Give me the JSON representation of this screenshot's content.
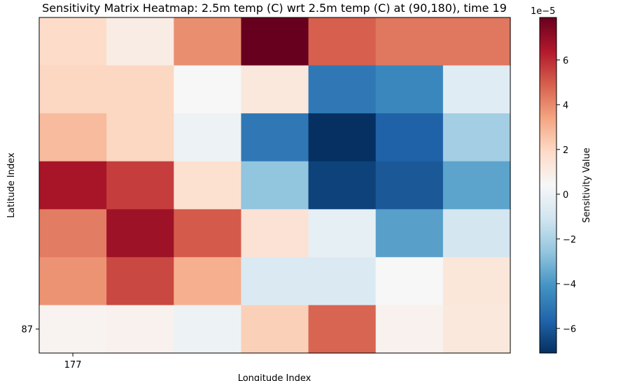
{
  "chart_data": {
    "type": "heatmap",
    "title": "Sensitivity Matrix Heatmap: 2.5m temp (C) wrt 2.5m temp (C) at (90,180), time 19",
    "xlabel": "Longitude Index",
    "ylabel": "Latitude Index",
    "x_tick_labels": [
      {
        "col": 0.5,
        "label": "177"
      }
    ],
    "y_tick_labels": [
      {
        "row": 6,
        "label": "87"
      }
    ],
    "grid": false,
    "colormap": "RdBu_r",
    "colorbar": {
      "label": "Sensitivity Value",
      "exponent_label": "1e−5",
      "range": [
        -7.1,
        7.9
      ],
      "ticks": [
        -6,
        -4,
        -2,
        0,
        2,
        4,
        6
      ],
      "tick_labels": [
        "−6",
        "−4",
        "−2",
        "0",
        "2",
        "4",
        "6"
      ]
    },
    "rows": 7,
    "cols": 7,
    "values": [
      [
        1.8,
        1.0,
        3.9,
        7.9,
        4.9,
        4.4,
        4.4
      ],
      [
        2.0,
        2.0,
        0.4,
        1.2,
        -5.0,
        -4.5,
        -0.5
      ],
      [
        2.8,
        2.0,
        0.0,
        -5.0,
        -7.1,
        -5.7,
        -2.2
      ],
      [
        6.6,
        5.6,
        1.6,
        -2.6,
        -6.6,
        -6.0,
        -3.6
      ],
      [
        4.3,
        6.8,
        5.0,
        1.5,
        -0.3,
        -3.7,
        -1.0
      ],
      [
        3.8,
        5.4,
        3.1,
        -0.7,
        -0.7,
        0.4,
        1.3
      ],
      [
        0.6,
        0.7,
        0.0,
        2.2,
        4.8,
        0.7,
        1.2
      ]
    ]
  }
}
